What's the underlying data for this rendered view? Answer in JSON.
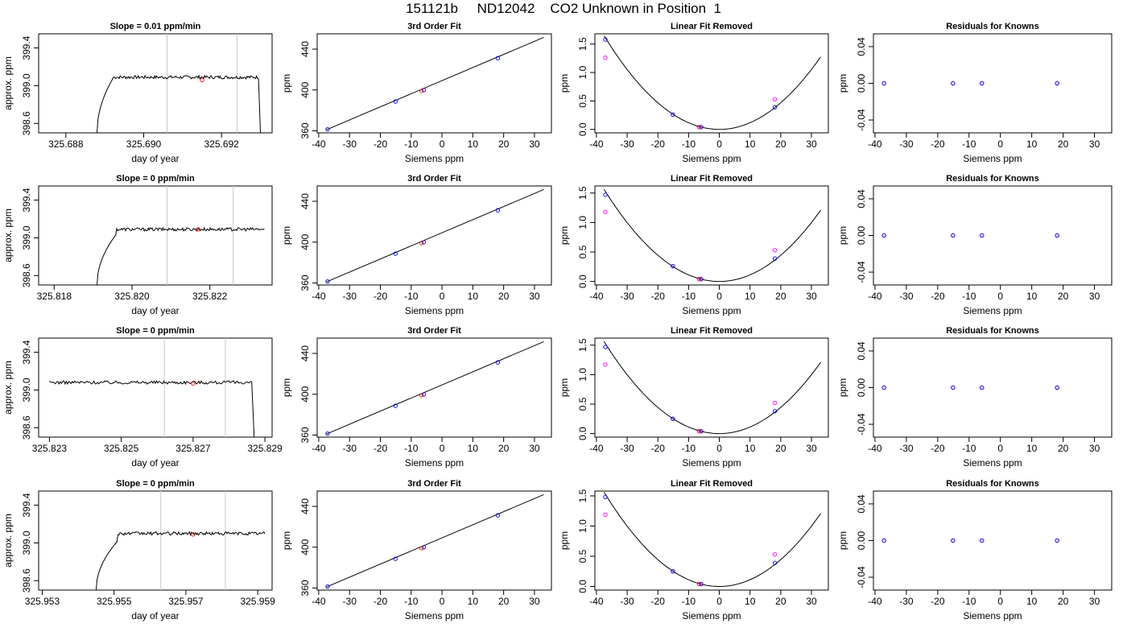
{
  "page_title": "151121b     ND12042    CO2 Unknown in Position  1",
  "colors": {
    "line": "#000000",
    "known_point": "#0000ff",
    "unknown_point": "#ff0000",
    "model_point": "#ff00ff",
    "marker_line": "#c8c8c8"
  },
  "chart_data": [
    {
      "type": "line",
      "row": 1,
      "column": 1,
      "title": "Slope =  0.01  ppm/min",
      "xlabel": "day of year",
      "ylabel": "approx. ppm",
      "xlim": [
        325.6873,
        325.6933
      ],
      "ylim": [
        398.5,
        399.55
      ],
      "xticks": [
        "325.688",
        "325.690",
        "325.692"
      ],
      "yticks": [
        "398.6",
        "399.0",
        "399.4"
      ],
      "vertical_markers": [
        325.6906,
        325.6924
      ],
      "trace": {
        "x_start": 325.6888,
        "x_end": 325.693,
        "rise_to": 399.07,
        "x_plateau": 325.6892,
        "level": 399.09,
        "end_drop": true
      },
      "unknown_point": {
        "x": 325.6915,
        "y": 399.06
      }
    },
    {
      "type": "line",
      "row": 2,
      "column": 1,
      "title": "Slope =  0  ppm/min",
      "xlabel": "day of year",
      "ylabel": "approx. ppm",
      "xlim": [
        325.8176,
        325.8236
      ],
      "ylim": [
        398.5,
        399.55
      ],
      "xticks": [
        "325.818",
        "325.820",
        "325.822"
      ],
      "yticks": [
        "398.6",
        "399.0",
        "399.4"
      ],
      "vertical_markers": [
        325.8209,
        325.8226
      ],
      "trace": {
        "x_start": 325.8191,
        "x_end": 325.8234,
        "rise_to": 399.04,
        "x_plateau": 325.8196,
        "level": 399.09,
        "end_drop": false
      },
      "unknown_point": {
        "x": 325.8217,
        "y": 399.09
      }
    },
    {
      "type": "line",
      "row": 3,
      "column": 1,
      "title": "Slope =  0  ppm/min",
      "xlabel": "day of year",
      "ylabel": "approx. ppm",
      "xlim": [
        325.8227,
        325.8292
      ],
      "ylim": [
        398.5,
        399.55
      ],
      "xticks": [
        "325.823",
        "325.825",
        "325.827",
        "325.829"
      ],
      "yticks": [
        "398.6",
        "399.0",
        "399.4"
      ],
      "vertical_markers": [
        325.8262,
        325.8279
      ],
      "trace": {
        "x_start": 325.823,
        "x_end": 325.8287,
        "rise_to": 399.08,
        "x_plateau": 325.823,
        "level": 399.08,
        "end_drop": true
      },
      "unknown_point": {
        "x": 325.827,
        "y": 399.07
      }
    },
    {
      "type": "line",
      "row": 4,
      "column": 1,
      "title": "Slope =  0  ppm/min",
      "xlabel": "day of year",
      "ylabel": "approx. ppm",
      "xlim": [
        325.9529,
        325.9594
      ],
      "ylim": [
        398.5,
        399.55
      ],
      "xticks": [
        "325.953",
        "325.955",
        "325.957",
        "325.959"
      ],
      "yticks": [
        "398.6",
        "399.0",
        "399.4"
      ],
      "vertical_markers": [
        325.9563,
        325.9581
      ],
      "trace": {
        "x_start": 325.9545,
        "x_end": 325.9592,
        "rise_to": 399.02,
        "x_plateau": 325.9551,
        "level": 399.1,
        "end_drop": false
      },
      "unknown_point": {
        "x": 325.9572,
        "y": 399.09
      }
    },
    {
      "type": "scatter",
      "row": 1,
      "column": 2,
      "title": "3rd Order Fit",
      "xlabel": "Siemens ppm",
      "ylabel": "ppm",
      "xlim": [
        -40.5,
        35.5
      ],
      "ylim": [
        358,
        455
      ],
      "xticks": [
        -40,
        -30,
        -20,
        -10,
        0,
        10,
        20,
        30
      ],
      "yticks": [
        360,
        400,
        440
      ],
      "fit_line": {
        "x": [
          -37.5,
          33
        ],
        "y": [
          361,
          451.5
        ]
      },
      "known_points": [
        {
          "x": -37.1,
          "y": 361.5
        },
        {
          "x": -15.1,
          "y": 388.7
        },
        {
          "x": -5.9,
          "y": 399.9
        },
        {
          "x": 18.1,
          "y": 431.2
        }
      ],
      "unknown_point": {
        "x": -6.6,
        "y": 399.1
      }
    },
    {
      "type": "scatter",
      "row": 2,
      "column": 2,
      "title": "3rd Order Fit",
      "xlabel": "Siemens ppm",
      "ylabel": "ppm",
      "xlim": [
        -40.5,
        35.5
      ],
      "ylim": [
        358,
        455
      ],
      "xticks": [
        -40,
        -30,
        -20,
        -10,
        0,
        10,
        20,
        30
      ],
      "yticks": [
        360,
        400,
        440
      ],
      "fit_line": {
        "x": [
          -37.5,
          33
        ],
        "y": [
          361,
          451.5
        ]
      },
      "known_points": [
        {
          "x": -37.1,
          "y": 361.5
        },
        {
          "x": -15.1,
          "y": 388.7
        },
        {
          "x": -5.9,
          "y": 399.9
        },
        {
          "x": 18.1,
          "y": 431.2
        }
      ],
      "unknown_point": {
        "x": -6.6,
        "y": 399.1
      }
    },
    {
      "type": "scatter",
      "row": 3,
      "column": 2,
      "title": "3rd Order Fit",
      "xlabel": "Siemens ppm",
      "ylabel": "ppm",
      "xlim": [
        -40.5,
        35.5
      ],
      "ylim": [
        358,
        455
      ],
      "xticks": [
        -40,
        -30,
        -20,
        -10,
        0,
        10,
        20,
        30
      ],
      "yticks": [
        360,
        400,
        440
      ],
      "fit_line": {
        "x": [
          -37.5,
          33
        ],
        "y": [
          361,
          451.5
        ]
      },
      "known_points": [
        {
          "x": -37.1,
          "y": 361.5
        },
        {
          "x": -15.1,
          "y": 388.7
        },
        {
          "x": -5.9,
          "y": 399.9
        },
        {
          "x": 18.1,
          "y": 431.2
        }
      ],
      "unknown_point": {
        "x": -6.6,
        "y": 399.1
      }
    },
    {
      "type": "scatter",
      "row": 4,
      "column": 2,
      "title": "3rd Order Fit",
      "xlabel": "Siemens ppm",
      "ylabel": "ppm",
      "xlim": [
        -40.5,
        35.5
      ],
      "ylim": [
        358,
        455
      ],
      "xticks": [
        -40,
        -30,
        -20,
        -10,
        0,
        10,
        20,
        30
      ],
      "yticks": [
        360,
        400,
        440
      ],
      "fit_line": {
        "x": [
          -37.5,
          33
        ],
        "y": [
          361,
          451.5
        ]
      },
      "known_points": [
        {
          "x": -37.1,
          "y": 361.5
        },
        {
          "x": -15.1,
          "y": 388.7
        },
        {
          "x": -5.9,
          "y": 399.9
        },
        {
          "x": 18.1,
          "y": 431.2
        }
      ],
      "unknown_point": {
        "x": -6.6,
        "y": 399.1
      }
    },
    {
      "type": "scatter",
      "row": 1,
      "column": 3,
      "title": "Linear Fit Removed",
      "xlabel": "Siemens ppm",
      "ylabel": "ppm",
      "xlim": [
        -40.5,
        35.5
      ],
      "ylim": [
        -0.06,
        1.68
      ],
      "xticks": [
        -40,
        -30,
        -20,
        -10,
        0,
        10,
        20,
        30
      ],
      "yticks": [
        "0.0",
        "0.5",
        "1.0",
        "1.5"
      ],
      "fit_curve": {
        "vertex_x": 0,
        "coef": 0.00117,
        "x_range": [
          -37.5,
          33
        ]
      },
      "known_points": [
        {
          "x": -37.1,
          "y": 1.58
        },
        {
          "x": -15.1,
          "y": 0.26
        },
        {
          "x": -5.9,
          "y": 0.04
        },
        {
          "x": 18.1,
          "y": 0.39
        }
      ],
      "model_points": [
        {
          "x": -37.1,
          "y": 1.26
        },
        {
          "x": -15.1,
          "y": 0.26
        },
        {
          "x": -5.9,
          "y": 0.04
        },
        {
          "x": 18.1,
          "y": 0.53
        }
      ],
      "unknown_point": {
        "x": -6.6,
        "y": 0.04
      }
    },
    {
      "type": "scatter",
      "row": 2,
      "column": 3,
      "title": "Linear Fit Removed",
      "xlabel": "Siemens ppm",
      "ylabel": "ppm",
      "xlim": [
        -40.5,
        35.5
      ],
      "ylim": [
        -0.06,
        1.62
      ],
      "xticks": [
        -40,
        -30,
        -20,
        -10,
        0,
        10,
        20,
        30
      ],
      "yticks": [
        "0.0",
        "0.5",
        "1.0",
        "1.5"
      ],
      "fit_curve": {
        "vertex_x": 0,
        "coef": 0.00111,
        "x_range": [
          -37.5,
          33
        ]
      },
      "known_points": [
        {
          "x": -37.1,
          "y": 1.47
        },
        {
          "x": -15.1,
          "y": 0.26
        },
        {
          "x": -5.9,
          "y": 0.04
        },
        {
          "x": 18.1,
          "y": 0.39
        }
      ],
      "model_points": [
        {
          "x": -37.1,
          "y": 1.18
        },
        {
          "x": -15.1,
          "y": 0.26
        },
        {
          "x": -5.9,
          "y": 0.04
        },
        {
          "x": 18.1,
          "y": 0.53
        }
      ],
      "unknown_point": {
        "x": -6.6,
        "y": 0.04
      }
    },
    {
      "type": "scatter",
      "row": 3,
      "column": 3,
      "title": "Linear Fit Removed",
      "xlabel": "Siemens ppm",
      "ylabel": "ppm",
      "xlim": [
        -40.5,
        35.5
      ],
      "ylim": [
        -0.06,
        1.62
      ],
      "xticks": [
        -40,
        -30,
        -20,
        -10,
        0,
        10,
        20,
        30
      ],
      "yticks": [
        "0.0",
        "0.5",
        "1.0",
        "1.5"
      ],
      "fit_curve": {
        "vertex_x": 0,
        "coef": 0.00111,
        "x_range": [
          -37.5,
          33
        ]
      },
      "known_points": [
        {
          "x": -37.1,
          "y": 1.47
        },
        {
          "x": -15.1,
          "y": 0.25
        },
        {
          "x": -5.9,
          "y": 0.04
        },
        {
          "x": 18.1,
          "y": 0.38
        }
      ],
      "model_points": [
        {
          "x": -37.1,
          "y": 1.17
        },
        {
          "x": -15.1,
          "y": 0.25
        },
        {
          "x": -5.9,
          "y": 0.04
        },
        {
          "x": 18.1,
          "y": 0.52
        }
      ],
      "unknown_point": {
        "x": -6.6,
        "y": 0.04
      }
    },
    {
      "type": "scatter",
      "row": 4,
      "column": 3,
      "title": "Linear Fit Removed",
      "xlabel": "Siemens ppm",
      "ylabel": "ppm",
      "xlim": [
        -40.5,
        35.5
      ],
      "ylim": [
        -0.06,
        1.58
      ],
      "xticks": [
        -40,
        -30,
        -20,
        -10,
        0,
        10,
        20,
        30
      ],
      "yticks": [
        "0.0",
        "0.5",
        "1.0",
        "1.5"
      ],
      "fit_curve": {
        "vertex_x": 0,
        "coef": 0.00111,
        "x_range": [
          -37.5,
          33
        ]
      },
      "known_points": [
        {
          "x": -37.1,
          "y": 1.48
        },
        {
          "x": -15.1,
          "y": 0.25
        },
        {
          "x": -5.9,
          "y": 0.04
        },
        {
          "x": 18.1,
          "y": 0.39
        }
      ],
      "model_points": [
        {
          "x": -37.1,
          "y": 1.19
        },
        {
          "x": -15.1,
          "y": 0.25
        },
        {
          "x": -5.9,
          "y": 0.04
        },
        {
          "x": 18.1,
          "y": 0.53
        }
      ],
      "unknown_point": {
        "x": -6.6,
        "y": 0.04
      }
    },
    {
      "type": "scatter",
      "row": 1,
      "column": 4,
      "title": "Residuals for Knowns",
      "xlabel": "Siemens ppm",
      "ylabel": "ppm",
      "xlim": [
        -40.5,
        35.5
      ],
      "ylim": [
        -0.054,
        0.054
      ],
      "xticks": [
        -40,
        -30,
        -20,
        -10,
        0,
        10,
        20,
        30
      ],
      "yticks": [
        "-0.04",
        "0.00",
        "0.04"
      ],
      "points": [
        {
          "x": -37.1,
          "y": 0.0
        },
        {
          "x": -15.1,
          "y": 0.0
        },
        {
          "x": -5.9,
          "y": 0.0
        },
        {
          "x": 18.1,
          "y": 0.0
        }
      ]
    },
    {
      "type": "scatter",
      "row": 2,
      "column": 4,
      "title": "Residuals for Knowns",
      "xlabel": "Siemens ppm",
      "ylabel": "ppm",
      "xlim": [
        -40.5,
        35.5
      ],
      "ylim": [
        -0.054,
        0.054
      ],
      "xticks": [
        -40,
        -30,
        -20,
        -10,
        0,
        10,
        20,
        30
      ],
      "yticks": [
        "-0.04",
        "0.00",
        "0.04"
      ],
      "points": [
        {
          "x": -37.1,
          "y": 0.0
        },
        {
          "x": -15.1,
          "y": 0.0
        },
        {
          "x": -5.9,
          "y": 0.0
        },
        {
          "x": 18.1,
          "y": 0.0
        }
      ]
    },
    {
      "type": "scatter",
      "row": 3,
      "column": 4,
      "title": "Residuals for Knowns",
      "xlabel": "Siemens ppm",
      "ylabel": "ppm",
      "xlim": [
        -40.5,
        35.5
      ],
      "ylim": [
        -0.054,
        0.054
      ],
      "xticks": [
        -40,
        -30,
        -20,
        -10,
        0,
        10,
        20,
        30
      ],
      "yticks": [
        "-0.04",
        "0.00",
        "0.04"
      ],
      "points": [
        {
          "x": -37.1,
          "y": 0.0
        },
        {
          "x": -15.1,
          "y": 0.0
        },
        {
          "x": -5.9,
          "y": 0.0
        },
        {
          "x": 18.1,
          "y": 0.0
        }
      ]
    },
    {
      "type": "scatter",
      "row": 4,
      "column": 4,
      "title": "Residuals for Knowns",
      "xlabel": "Siemens ppm",
      "ylabel": "ppm",
      "xlim": [
        -40.5,
        35.5
      ],
      "ylim": [
        -0.054,
        0.054
      ],
      "xticks": [
        -40,
        -30,
        -20,
        -10,
        0,
        10,
        20,
        30
      ],
      "yticks": [
        "-0.04",
        "0.00",
        "0.04"
      ],
      "points": [
        {
          "x": -37.1,
          "y": 0.0
        },
        {
          "x": -15.1,
          "y": 0.0
        },
        {
          "x": -5.9,
          "y": 0.0
        },
        {
          "x": 18.1,
          "y": 0.0
        }
      ]
    }
  ]
}
